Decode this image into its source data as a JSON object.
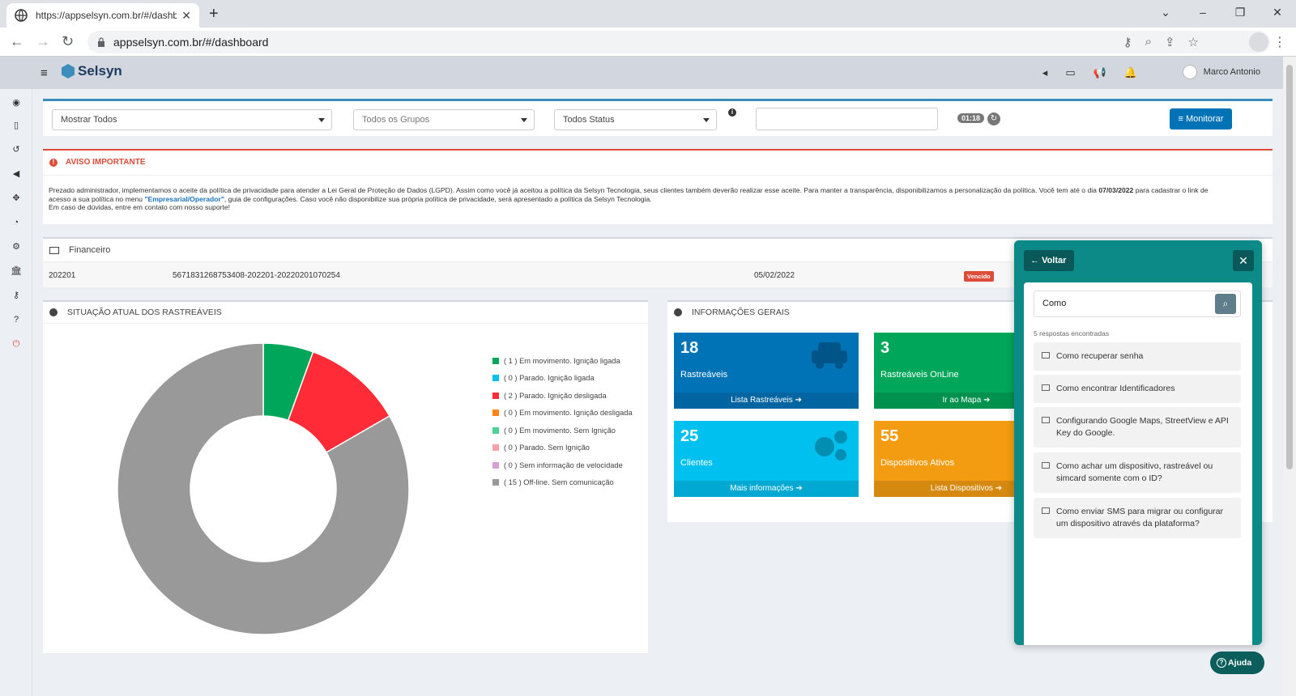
{
  "browser": {
    "tab_title": "https://appselsyn.com.br/#/dashb",
    "url": "appselsyn.com.br/#/dashboard"
  },
  "header": {
    "logo_text": "Selsyn",
    "user_name": "Marco Antonio"
  },
  "filters": {
    "show_all": "Mostrar Todos",
    "groups": "Todos os Grupos",
    "status": "Todos Status",
    "timer": "01:18",
    "monitor_button": "Monitorar"
  },
  "notice": {
    "title": "AVISO IMPORTANTE",
    "line1": "Prezado administrador, implementamos o aceite da política de privacidade para atender a Lei Geral de Proteção de Dados (LGPD). Assim como você já aceitou a política da Selsyn Tecnologia, seus clientes também deverão realizar esse aceite. Para manter a transparência, disponibilizamos a personalização da política. Você tem até o dia",
    "date": "07/03/2022",
    "line1_tail": "para cadastrar o link de",
    "line2_head": "acesso a sua política no menu",
    "menu_link": "\"Empresarial/Operador\"",
    "line2_tail": ", guia de configurações. Caso você não disponibilize sua própria política de privacidade, será apresentado a política da Selsyn Tecnologia.",
    "line3": "Em caso de dúvidas, entre em contato com nosso suporte!"
  },
  "financeiro": {
    "title": "Financeiro",
    "row": {
      "period": "202201",
      "code": "5671831268753408-202201-20220201070254",
      "date": "05/02/2022",
      "status": "Vencido"
    }
  },
  "situacao": {
    "title": "SITUAÇÃO ATUAL DOS RASTREÁVEIS"
  },
  "chart_data": {
    "type": "pie",
    "categories": [
      "( 1 ) Em movimento. Ignição ligada",
      "( 0 ) Parado. Ignição ligada",
      "( 2 ) Parado. Ignição desligada",
      "( 0 ) Em movimento. Ignição desligada",
      "( 0 ) Em movimento. Sem Ignição",
      "( 0 ) Parado. Sem Ignição",
      "( 0 ) Sem informação de velocidade",
      "( 15 ) Off-line. Sem comunicação"
    ],
    "values": [
      1,
      0,
      2,
      0,
      0,
      0,
      0,
      15
    ],
    "colors": [
      "#00a65a",
      "#00c0ef",
      "#ff2b36",
      "#ff851b",
      "#4cd196",
      "#f7a0a9",
      "#d8a0d2",
      "#999999"
    ],
    "donut": true,
    "legend_position": "right"
  },
  "infos": {
    "title": "INFORMAÇÕES GERAIS",
    "cards": [
      {
        "value": "18",
        "label": "Rastreáveis",
        "link": "Lista Rastreáveis",
        "color": "#0073b7",
        "icon": "car-icon"
      },
      {
        "value": "3",
        "label": "Rastreáveis OnLine",
        "link": "Ir ao Mapa",
        "color": "#00a65a",
        "icon": "map-icon"
      },
      {
        "value": "25",
        "label": "Clientes",
        "link": "Mais informações",
        "color": "#00c0ef",
        "icon": "gears-icon"
      },
      {
        "value": "55",
        "label": "Dispositivos Ativos",
        "link": "Lista Dispositivos",
        "color": "#f39c12",
        "icon": "device-icon"
      }
    ]
  },
  "help": {
    "back": "Voltar",
    "query": "Como",
    "count": "5 respostas encontradas",
    "results": [
      "Como recuperar senha",
      "Como encontrar Identificadores",
      "Configurando Google Maps, StreetView e API Key do Google.",
      "Como achar um dispositivo, rastreável ou simcard somente com o ID?",
      "Como enviar SMS para migrar ou configurar um dispositivo através da plataforma?"
    ],
    "button": "Ajuda"
  }
}
